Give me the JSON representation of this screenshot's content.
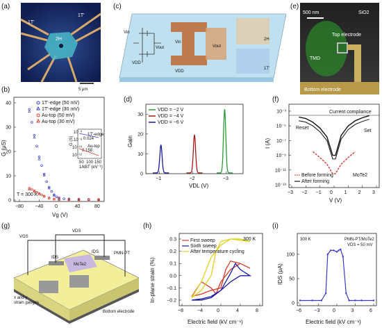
{
  "panels": {
    "a": {
      "label": "(a)",
      "phase_left": "1T'",
      "phase_right": "1T'",
      "phase_center": "2H",
      "scalebar": "5 μm"
    },
    "b": {
      "label": "(b)",
      "temp": "T = 300 K",
      "xlabel": "Vg (V)",
      "ylabel": "G (μS)",
      "xticks": [
        "−80",
        "−40",
        "0",
        "40",
        "80"
      ],
      "yticks": [
        "0",
        "10",
        "20",
        "30",
        "40"
      ],
      "legend": [
        "1T'-edge (50 mV)",
        "1T'-edge (30 mV)",
        "Au-top (50 mV)",
        "Au-top (30 mV)"
      ],
      "inset": {
        "ylabel": "G (S)",
        "xlabel": "1/kBT (eV⁻¹)",
        "yticks": [
          "10⁻⁶",
          "10⁻⁸",
          "10⁻¹⁰",
          "10⁻¹²"
        ],
        "xticks": [
          "50",
          "100",
          "150"
        ],
        "legend": [
          "1T'-edge",
          "Au-top"
        ],
        "ann1": "0.024",
        "ann2": "0.158"
      }
    },
    "c": {
      "label": "(c)",
      "labels": [
        "Vin",
        "Vout",
        "VDD",
        "Vin",
        "Vout",
        "VDD",
        "2H",
        "1T'"
      ]
    },
    "d": {
      "label": "(d)",
      "xlabel": "VDL (V)",
      "ylabel": "Gain",
      "xticks": [
        "−1",
        "−2",
        "−3"
      ],
      "yticks": [
        "0",
        "10",
        "20",
        "30"
      ],
      "legend": [
        "VDD = −2 V",
        "VDD = −4 V",
        "VDD = −6 V"
      ]
    },
    "e": {
      "label": "(e)",
      "scalebar": "500 nm",
      "labels": [
        "SiO2",
        "Top electrode",
        "TMD",
        "Bottom electrode"
      ]
    },
    "f": {
      "label": "(f)",
      "xlabel": "V (V)",
      "ylabel": "I (A)",
      "xticks": [
        "−3",
        "−2",
        "−1",
        "0",
        "1",
        "2",
        "3"
      ],
      "yticks": [
        "10⁻³",
        "10⁻⁵",
        "10⁻⁷",
        "10⁻⁹",
        "10⁻¹¹",
        "10⁻¹³"
      ],
      "compliance": "Current compliance",
      "reset": "Reset",
      "set": "Set",
      "material": "MoTe2",
      "legend": [
        "Before forming",
        "After forming"
      ]
    },
    "g": {
      "label": "(g)",
      "labels": [
        "VGS",
        "VDS",
        "PMN-PT",
        "IDS",
        "IDS",
        "MoTe2",
        "x and y",
        "strain gauges",
        "Bottom electrode"
      ]
    },
    "h": {
      "label": "(h)",
      "temp": "300 K",
      "xlabel": "Electric field (kV cm⁻¹)",
      "ylabel": "In-plane strain (%)",
      "xticks": [
        "−8",
        "−4",
        "0",
        "4",
        "8"
      ],
      "yticks": [
        "−0.2",
        "−0.1",
        "0.0",
        "0.1",
        "0.2",
        "0.3"
      ],
      "legend": [
        "First sweep",
        "Sixth sweep",
        "After temperature cycling"
      ]
    },
    "i": {
      "label": "(i)",
      "temp": "300 K",
      "device": "PMN-PT/MoTe2",
      "bias": "VDS = 50 mV",
      "xlabel": "Electric field (kV cm⁻¹)",
      "ylabel": "IDS (μA)",
      "xticks": [
        "−6",
        "−3",
        "0",
        "3",
        "6"
      ],
      "yticks": [
        "0",
        "50",
        "100"
      ]
    }
  },
  "colors": {
    "blue": "#3a3ac8",
    "red": "#d83a2a",
    "green": "#2a9a3a",
    "darkred": "#a01818",
    "navy": "#1818a0",
    "yellow": "#e0d020",
    "purple": "#7a2a8a",
    "substrate": "#f2ee9a"
  },
  "chart_data": [
    {
      "panel": "b",
      "type": "scatter",
      "xlabel": "Vg (V)",
      "ylabel": "G (μS)",
      "xlim": [
        -80,
        80
      ],
      "ylim": [
        0,
        45
      ],
      "series": [
        {
          "name": "1T'-edge (50 mV)",
          "x": [
            -60,
            -55,
            -50,
            -45,
            -40,
            -35,
            -30,
            -25,
            -20,
            -15,
            -10,
            -5,
            0,
            10,
            20,
            40,
            60,
            80
          ],
          "y": [
            42,
            36,
            30,
            25,
            20,
            16,
            12,
            8.5,
            6,
            4,
            2.5,
            1.5,
            1,
            0.6,
            0.5,
            0.4,
            0.3,
            0.3
          ]
        },
        {
          "name": "1T'-edge (30 mV)",
          "x": [
            -60,
            -50,
            -40,
            -30,
            -20,
            -10,
            0,
            20,
            40,
            60,
            80
          ],
          "y": [
            41,
            29,
            19,
            11.5,
            5.5,
            2.2,
            0.9,
            0.5,
            0.4,
            0.3,
            0.3
          ]
        },
        {
          "name": "Au-top (50 mV)",
          "x": [
            -60,
            -55,
            -50,
            -45,
            -40,
            -35,
            -30,
            -20,
            -10,
            0,
            20,
            40,
            60,
            80
          ],
          "y": [
            5.5,
            5,
            4.3,
            3.6,
            3,
            2.4,
            1.8,
            1,
            0.5,
            0.3,
            0.2,
            0.2,
            0.2,
            0.2
          ]
        },
        {
          "name": "Au-top (30 mV)",
          "x": [
            -60,
            -50,
            -40,
            -30,
            -20,
            -10,
            0,
            20,
            40,
            60,
            80
          ],
          "y": [
            5,
            4,
            2.8,
            1.7,
            0.9,
            0.4,
            0.3,
            0.2,
            0.2,
            0.2,
            0.2
          ]
        }
      ]
    },
    {
      "panel": "d",
      "type": "line",
      "xlabel": "VDL (V)",
      "ylabel": "Gain",
      "ylim": [
        0,
        35
      ],
      "series": [
        {
          "name": "VDD = −2 V",
          "peak_x": -2.95,
          "peak_y": 32
        },
        {
          "name": "VDD = −4 V",
          "peak_x": -2.05,
          "peak_y": 19
        },
        {
          "name": "VDD = −6 V",
          "peak_x": -1.05,
          "peak_y": 14
        }
      ]
    },
    {
      "panel": "f",
      "type": "line",
      "xlabel": "V (V)",
      "ylabel": "I (A)",
      "xlim": [
        -3,
        3
      ],
      "ylim_log10": [
        -13,
        -3
      ],
      "series": [
        {
          "name": "Before forming",
          "x": [
            -1.5,
            -1.0,
            -0.5,
            -0.1,
            0.1,
            0.5,
            1.0,
            1.5
          ],
          "log10_y": [
            -8.5,
            -9.3,
            -10.2,
            -11.5,
            -11.5,
            -10.2,
            -9.3,
            -8.5
          ]
        },
        {
          "name": "After forming",
          "x": [
            -2.5,
            -2,
            -1.5,
            -1,
            -0.5,
            -0.1,
            0.1,
            0.5,
            1,
            1.5,
            2,
            2.5
          ],
          "log10_y": [
            -3.8,
            -4.0,
            -4.5,
            -5.3,
            -6.5,
            -9,
            -9,
            -6.3,
            -5,
            -4.3,
            -3.9,
            -3.6
          ]
        }
      ]
    },
    {
      "panel": "h",
      "type": "line",
      "xlabel": "Electric field (kV cm⁻¹)",
      "ylabel": "In-plane strain (%)",
      "xlim": [
        -8,
        8
      ],
      "ylim": [
        -0.25,
        0.35
      ],
      "series": [
        {
          "name": "First sweep",
          "x": [
            -6,
            -4,
            -2,
            0,
            1,
            2,
            4,
            6,
            4,
            2,
            0,
            -1,
            -2,
            -4,
            -6
          ],
          "y": [
            -0.17,
            -0.15,
            -0.12,
            -0.1,
            0.05,
            0.12,
            0.1,
            0.06,
            0.1,
            0.05,
            -0.05,
            -0.15,
            -0.1,
            -0.05,
            -0.17
          ]
        },
        {
          "name": "Sixth sweep",
          "x": [
            -6,
            -4,
            -2,
            0,
            2,
            3,
            4,
            6,
            4,
            2,
            0,
            -2,
            -4,
            -6
          ],
          "y": [
            -0.2,
            -0.19,
            -0.17,
            -0.12,
            0.02,
            0.1,
            0.05,
            0.0,
            0.0,
            -0.05,
            -0.12,
            -0.18,
            -0.2,
            -0.2
          ]
        },
        {
          "name": "After temperature cycling",
          "x": [
            -6,
            -4,
            -2,
            -1,
            0,
            2,
            4,
            6,
            4,
            2,
            0,
            -2,
            -4,
            -6
          ],
          "y": [
            -0.18,
            -0.12,
            0.0,
            0.2,
            0.28,
            0.3,
            0.3,
            0.28,
            0.29,
            0.3,
            0.25,
            0.15,
            -0.05,
            -0.18
          ]
        }
      ]
    },
    {
      "panel": "i",
      "type": "line",
      "xlabel": "Electric field (kV cm⁻¹)",
      "ylabel": "IDS (μA)",
      "xlim": [
        -6,
        6
      ],
      "ylim": [
        0,
        120
      ],
      "series": [
        {
          "name": "",
          "x": [
            -6,
            -4,
            -2.5,
            -1.8,
            -1.5,
            -1,
            -0.5,
            0,
            0.3,
            0.6,
            1,
            1.5,
            2,
            3,
            4,
            6
          ],
          "y": [
            5,
            5,
            5,
            20,
            100,
            108,
            108,
            105,
            108,
            110,
            95,
            20,
            5,
            5,
            5,
            5
          ]
        }
      ]
    }
  ]
}
